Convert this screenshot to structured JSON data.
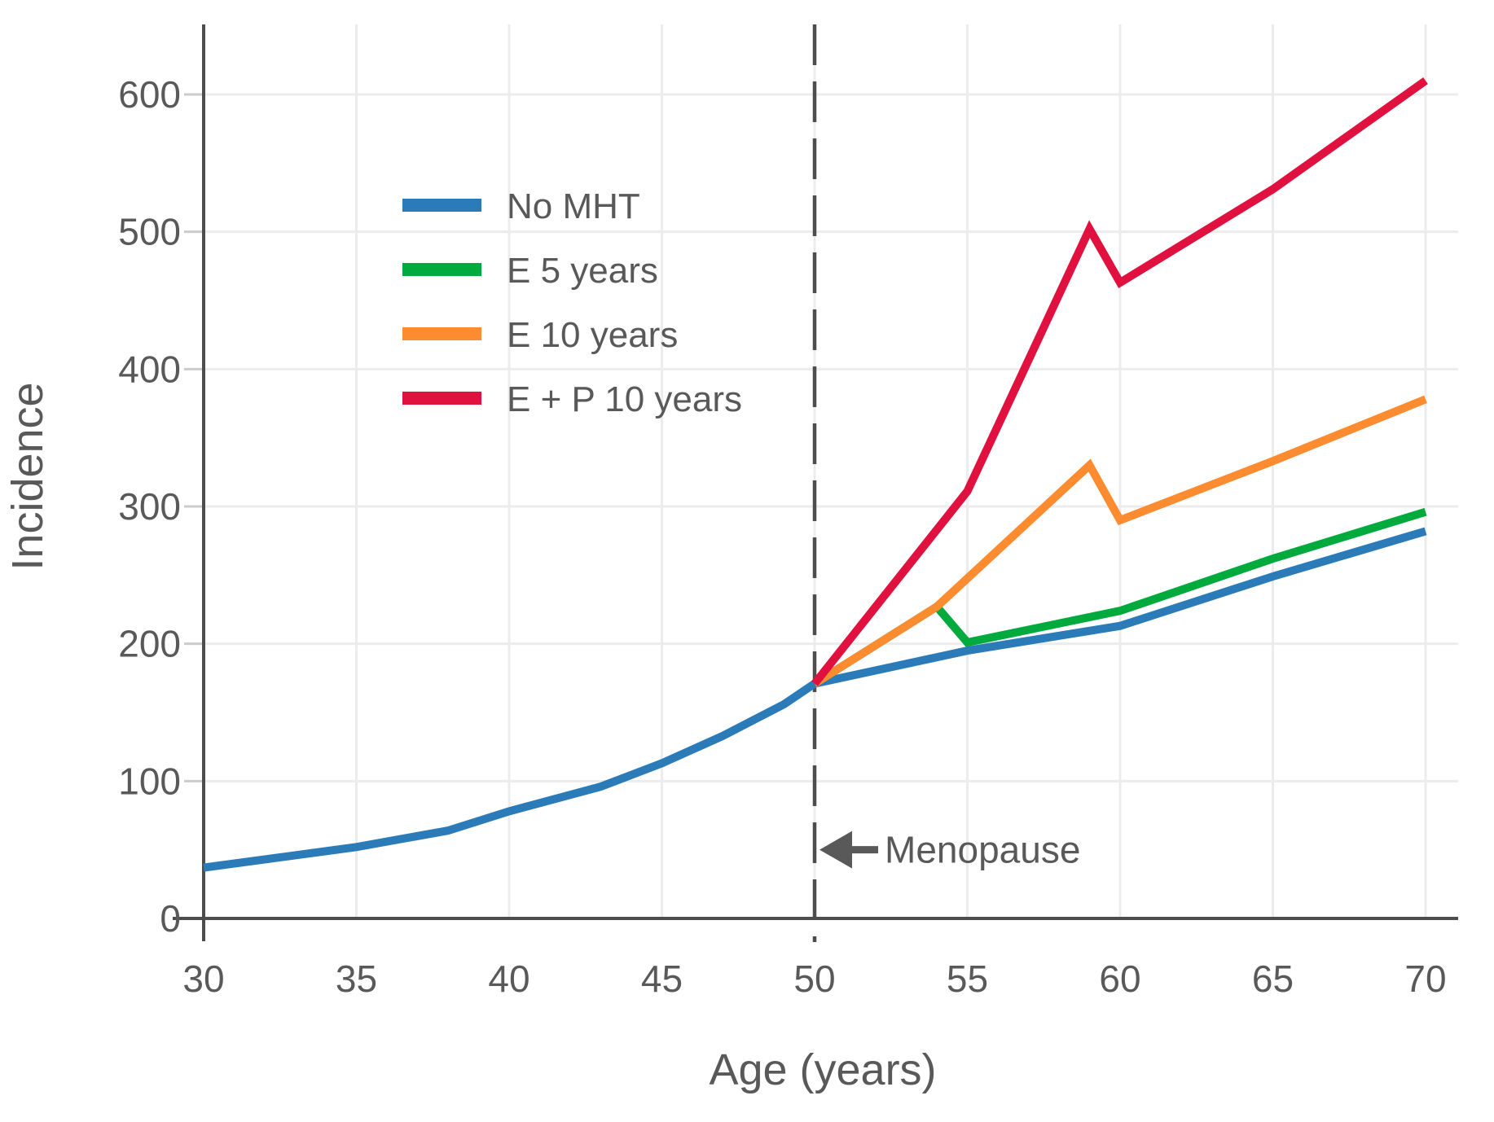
{
  "figure": {
    "background": "#ffffff",
    "text_color": "#595959",
    "axis_color": "#4d4d4d",
    "grid_color": "#ececec",
    "minor_tick_color": "#cccccc"
  },
  "chart_data": {
    "type": "line",
    "title": "",
    "xlabel": "Age (years)",
    "ylabel": "Incidence",
    "xlim": [
      30,
      70
    ],
    "ylim": [
      0,
      650
    ],
    "xticks": [
      30,
      35,
      40,
      45,
      50,
      55,
      60,
      65,
      70
    ],
    "yticks": [
      0,
      100,
      200,
      300,
      400,
      500,
      600
    ],
    "grid": true,
    "legend_position": "upper-left-inside",
    "series": [
      {
        "name": "No MHT",
        "color": "#2b7bb9",
        "points": [
          [
            30,
            37
          ],
          [
            33,
            46
          ],
          [
            35,
            52
          ],
          [
            38,
            64
          ],
          [
            40,
            78
          ],
          [
            43,
            96
          ],
          [
            45,
            113
          ],
          [
            47,
            133
          ],
          [
            49,
            156
          ],
          [
            50,
            171
          ],
          [
            55,
            195
          ],
          [
            60,
            213
          ],
          [
            65,
            249
          ],
          [
            70,
            282
          ]
        ]
      },
      {
        "name": "E 5 years",
        "color": "#00aa3c",
        "points": [
          [
            50,
            171
          ],
          [
            54,
            227
          ],
          [
            55,
            201
          ],
          [
            60,
            224
          ],
          [
            65,
            262
          ],
          [
            70,
            296
          ]
        ]
      },
      {
        "name": "E 10 years",
        "color": "#fd8c31",
        "points": [
          [
            50,
            171
          ],
          [
            54,
            227
          ],
          [
            59,
            330
          ],
          [
            60,
            290
          ],
          [
            65,
            333
          ],
          [
            70,
            378
          ]
        ]
      },
      {
        "name": "E + P 10 years",
        "color": "#e0103f",
        "points": [
          [
            50,
            171
          ],
          [
            55,
            311
          ],
          [
            59,
            502
          ],
          [
            60,
            463
          ],
          [
            65,
            531
          ],
          [
            70,
            610
          ]
        ]
      }
    ],
    "annotations": [
      {
        "type": "vline-with-arrow",
        "x": 50,
        "text": "Menopause",
        "label_y": 50
      }
    ]
  }
}
